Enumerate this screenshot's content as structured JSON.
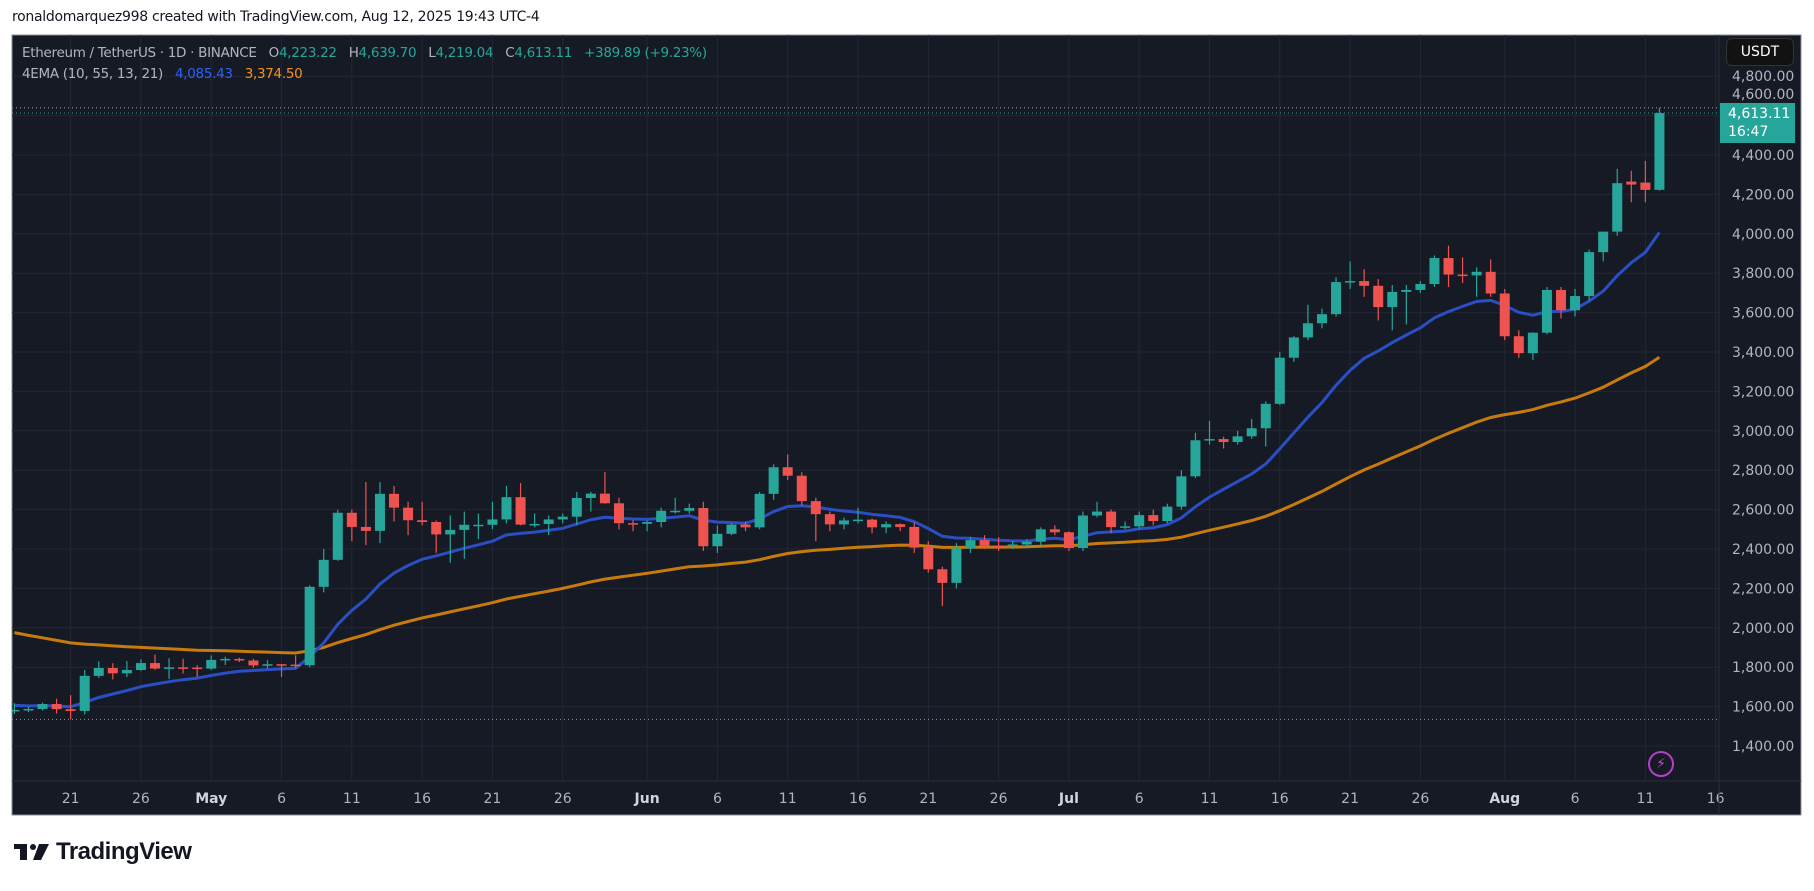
{
  "attribution": "ronaldomarquez998 created with TradingView.com, Aug 12, 2025 19:43 UTC-4",
  "legend": {
    "symbol": "Ethereum / TetherUS · 1D · BINANCE",
    "open_label": "O",
    "open": "4,223.22",
    "high_label": "H",
    "high": "4,639.70",
    "low_label": "L",
    "low": "4,219.04",
    "close_label": "C",
    "close": "4,613.11",
    "change": "+389.89 (+9.23%)",
    "indicator": "4EMA (10, 55, 13, 21)",
    "ema_fast_value": "4,085.43",
    "ema_slow_value": "3,374.50"
  },
  "currency_button": "USDT",
  "price_label": {
    "price": "4,613.11",
    "countdown": "16:47"
  },
  "footer": {
    "brand": "TradingView"
  },
  "icons": {
    "alert": "lightning-icon",
    "logo": "tradingview-logo"
  },
  "colors": {
    "up": "#26a69a",
    "down": "#ef5350",
    "ema_fast": "#2a4fc4",
    "ema_slow": "#c77b0c",
    "background": "#161a25",
    "grid": "#242733"
  },
  "chart_data": {
    "type": "candlestick",
    "symbol": "ETHUSDT",
    "interval": "1D",
    "ylim": [
      1300,
      4850
    ],
    "y_ticks": [
      "1,400.00",
      "1,600.00",
      "1,800.00",
      "2,000.00",
      "2,200.00",
      "2,400.00",
      "2,600.00",
      "2,800.00",
      "3,000.00",
      "3,200.00",
      "3,400.00",
      "3,600.00",
      "3,800.00",
      "4,000.00",
      "4,200.00",
      "4,400.00",
      "4,600.00",
      "4,800.00"
    ],
    "x_ticks": [
      {
        "date": "2025-04-21",
        "label": "21"
      },
      {
        "date": "2025-04-26",
        "label": "26"
      },
      {
        "date": "2025-05-01",
        "label": "May"
      },
      {
        "date": "2025-05-06",
        "label": "6"
      },
      {
        "date": "2025-05-11",
        "label": "11"
      },
      {
        "date": "2025-05-16",
        "label": "16"
      },
      {
        "date": "2025-05-21",
        "label": "21"
      },
      {
        "date": "2025-05-26",
        "label": "26"
      },
      {
        "date": "2025-06-01",
        "label": "Jun"
      },
      {
        "date": "2025-06-06",
        "label": "6"
      },
      {
        "date": "2025-06-11",
        "label": "11"
      },
      {
        "date": "2025-06-16",
        "label": "16"
      },
      {
        "date": "2025-06-21",
        "label": "21"
      },
      {
        "date": "2025-06-26",
        "label": "26"
      },
      {
        "date": "2025-07-01",
        "label": "Jul"
      },
      {
        "date": "2025-07-06",
        "label": "6"
      },
      {
        "date": "2025-07-11",
        "label": "11"
      },
      {
        "date": "2025-07-16",
        "label": "16"
      },
      {
        "date": "2025-07-21",
        "label": "21"
      },
      {
        "date": "2025-07-26",
        "label": "26"
      },
      {
        "date": "2025-08-01",
        "label": "Aug"
      },
      {
        "date": "2025-08-06",
        "label": "6"
      },
      {
        "date": "2025-08-11",
        "label": "11"
      },
      {
        "date": "2025-08-16",
        "label": "16"
      }
    ],
    "start_date": "2025-04-17",
    "ohlc": [
      [
        1577,
        1617,
        1563,
        1583
      ],
      [
        1583,
        1600,
        1572,
        1588
      ],
      [
        1588,
        1620,
        1580,
        1613
      ],
      [
        1613,
        1640,
        1565,
        1587
      ],
      [
        1587,
        1658,
        1535,
        1578
      ],
      [
        1578,
        1786,
        1560,
        1756
      ],
      [
        1756,
        1830,
        1745,
        1796
      ],
      [
        1796,
        1820,
        1738,
        1769
      ],
      [
        1769,
        1831,
        1750,
        1786
      ],
      [
        1786,
        1840,
        1780,
        1821
      ],
      [
        1821,
        1864,
        1786,
        1793
      ],
      [
        1793,
        1845,
        1740,
        1799
      ],
      [
        1799,
        1843,
        1768,
        1798
      ],
      [
        1798,
        1810,
        1750,
        1793
      ],
      [
        1793,
        1860,
        1785,
        1837
      ],
      [
        1837,
        1853,
        1811,
        1842
      ],
      [
        1842,
        1848,
        1826,
        1834
      ],
      [
        1834,
        1843,
        1797,
        1809
      ],
      [
        1809,
        1836,
        1794,
        1815
      ],
      [
        1815,
        1817,
        1750,
        1813
      ],
      [
        1813,
        1860,
        1795,
        1810
      ],
      [
        1810,
        2215,
        1800,
        2208
      ],
      [
        2208,
        2400,
        2180,
        2345
      ],
      [
        2345,
        2600,
        2340,
        2584
      ],
      [
        2584,
        2600,
        2440,
        2512
      ],
      [
        2512,
        2740,
        2420,
        2492
      ],
      [
        2492,
        2740,
        2430,
        2680
      ],
      [
        2680,
        2720,
        2540,
        2610
      ],
      [
        2610,
        2640,
        2470,
        2546
      ],
      [
        2546,
        2640,
        2520,
        2537
      ],
      [
        2537,
        2545,
        2380,
        2474
      ],
      [
        2474,
        2570,
        2330,
        2497
      ],
      [
        2497,
        2590,
        2350,
        2523
      ],
      [
        2523,
        2580,
        2450,
        2523
      ],
      [
        2523,
        2640,
        2500,
        2550
      ],
      [
        2550,
        2720,
        2530,
        2663
      ],
      [
        2663,
        2735,
        2520,
        2524
      ],
      [
        2524,
        2580,
        2510,
        2527
      ],
      [
        2527,
        2570,
        2470,
        2550
      ],
      [
        2550,
        2580,
        2530,
        2564
      ],
      [
        2564,
        2690,
        2520,
        2659
      ],
      [
        2659,
        2690,
        2590,
        2681
      ],
      [
        2681,
        2790,
        2630,
        2632
      ],
      [
        2632,
        2660,
        2500,
        2531
      ],
      [
        2531,
        2545,
        2490,
        2528
      ],
      [
        2528,
        2545,
        2490,
        2537
      ],
      [
        2537,
        2610,
        2510,
        2594
      ],
      [
        2594,
        2660,
        2580,
        2594
      ],
      [
        2594,
        2630,
        2580,
        2608
      ],
      [
        2608,
        2640,
        2390,
        2414
      ],
      [
        2414,
        2520,
        2380,
        2477
      ],
      [
        2477,
        2530,
        2470,
        2524
      ],
      [
        2524,
        2540,
        2490,
        2510
      ],
      [
        2510,
        2690,
        2500,
        2680
      ],
      [
        2680,
        2830,
        2650,
        2815
      ],
      [
        2815,
        2880,
        2750,
        2772
      ],
      [
        2772,
        2790,
        2620,
        2643
      ],
      [
        2643,
        2660,
        2440,
        2577
      ],
      [
        2577,
        2590,
        2490,
        2525
      ],
      [
        2525,
        2560,
        2500,
        2545
      ],
      [
        2545,
        2610,
        2530,
        2549
      ],
      [
        2549,
        2555,
        2480,
        2510
      ],
      [
        2510,
        2540,
        2480,
        2526
      ],
      [
        2526,
        2530,
        2490,
        2512
      ],
      [
        2512,
        2535,
        2380,
        2407
      ],
      [
        2407,
        2440,
        2280,
        2297
      ],
      [
        2297,
        2310,
        2110,
        2228
      ],
      [
        2228,
        2430,
        2200,
        2403
      ],
      [
        2403,
        2460,
        2380,
        2445
      ],
      [
        2445,
        2470,
        2400,
        2417
      ],
      [
        2417,
        2460,
        2390,
        2415
      ],
      [
        2415,
        2440,
        2400,
        2423
      ],
      [
        2423,
        2450,
        2410,
        2437
      ],
      [
        2437,
        2510,
        2420,
        2500
      ],
      [
        2500,
        2520,
        2470,
        2485
      ],
      [
        2485,
        2490,
        2390,
        2405
      ],
      [
        2405,
        2590,
        2390,
        2570
      ],
      [
        2570,
        2640,
        2560,
        2590
      ],
      [
        2590,
        2600,
        2480,
        2511
      ],
      [
        2511,
        2540,
        2500,
        2515
      ],
      [
        2515,
        2590,
        2500,
        2572
      ],
      [
        2572,
        2600,
        2520,
        2542
      ],
      [
        2542,
        2630,
        2530,
        2615
      ],
      [
        2615,
        2800,
        2600,
        2769
      ],
      [
        2769,
        2990,
        2760,
        2952
      ],
      [
        2952,
        3050,
        2930,
        2958
      ],
      [
        2958,
        2970,
        2910,
        2943
      ],
      [
        2943,
        3000,
        2930,
        2972
      ],
      [
        2972,
        3060,
        2960,
        3013
      ],
      [
        3013,
        3150,
        2920,
        3137
      ],
      [
        3137,
        3400,
        3130,
        3371
      ],
      [
        3371,
        3480,
        3350,
        3474
      ],
      [
        3474,
        3640,
        3460,
        3546
      ],
      [
        3546,
        3620,
        3520,
        3592
      ],
      [
        3592,
        3780,
        3580,
        3755
      ],
      [
        3755,
        3860,
        3720,
        3760
      ],
      [
        3760,
        3820,
        3680,
        3736
      ],
      [
        3736,
        3770,
        3560,
        3628
      ],
      [
        3628,
        3740,
        3510,
        3705
      ],
      [
        3705,
        3740,
        3540,
        3715
      ],
      [
        3715,
        3760,
        3700,
        3745
      ],
      [
        3745,
        3890,
        3730,
        3877
      ],
      [
        3877,
        3940,
        3730,
        3793
      ],
      [
        3793,
        3880,
        3750,
        3789
      ],
      [
        3789,
        3830,
        3680,
        3807
      ],
      [
        3807,
        3870,
        3680,
        3697
      ],
      [
        3697,
        3720,
        3460,
        3480
      ],
      [
        3480,
        3510,
        3370,
        3394
      ],
      [
        3394,
        3500,
        3360,
        3498
      ],
      [
        3498,
        3730,
        3490,
        3715
      ],
      [
        3715,
        3730,
        3570,
        3612
      ],
      [
        3612,
        3720,
        3580,
        3684
      ],
      [
        3684,
        3920,
        3660,
        3907
      ],
      [
        3907,
        4010,
        3860,
        4011
      ],
      [
        4011,
        4330,
        3990,
        4257
      ],
      [
        4265,
        4320,
        4160,
        4250
      ],
      [
        4260,
        4370,
        4160,
        4223
      ],
      [
        4223.22,
        4639.7,
        4219.04,
        4613.11
      ]
    ],
    "ema_fast": {
      "period": 13,
      "last": 4085.43
    },
    "ema_slow": {
      "period": 55,
      "last": 3374.5
    },
    "visible_low": 1535,
    "visible_high": 4639.7,
    "last_close": 4613.11,
    "grid": true
  }
}
